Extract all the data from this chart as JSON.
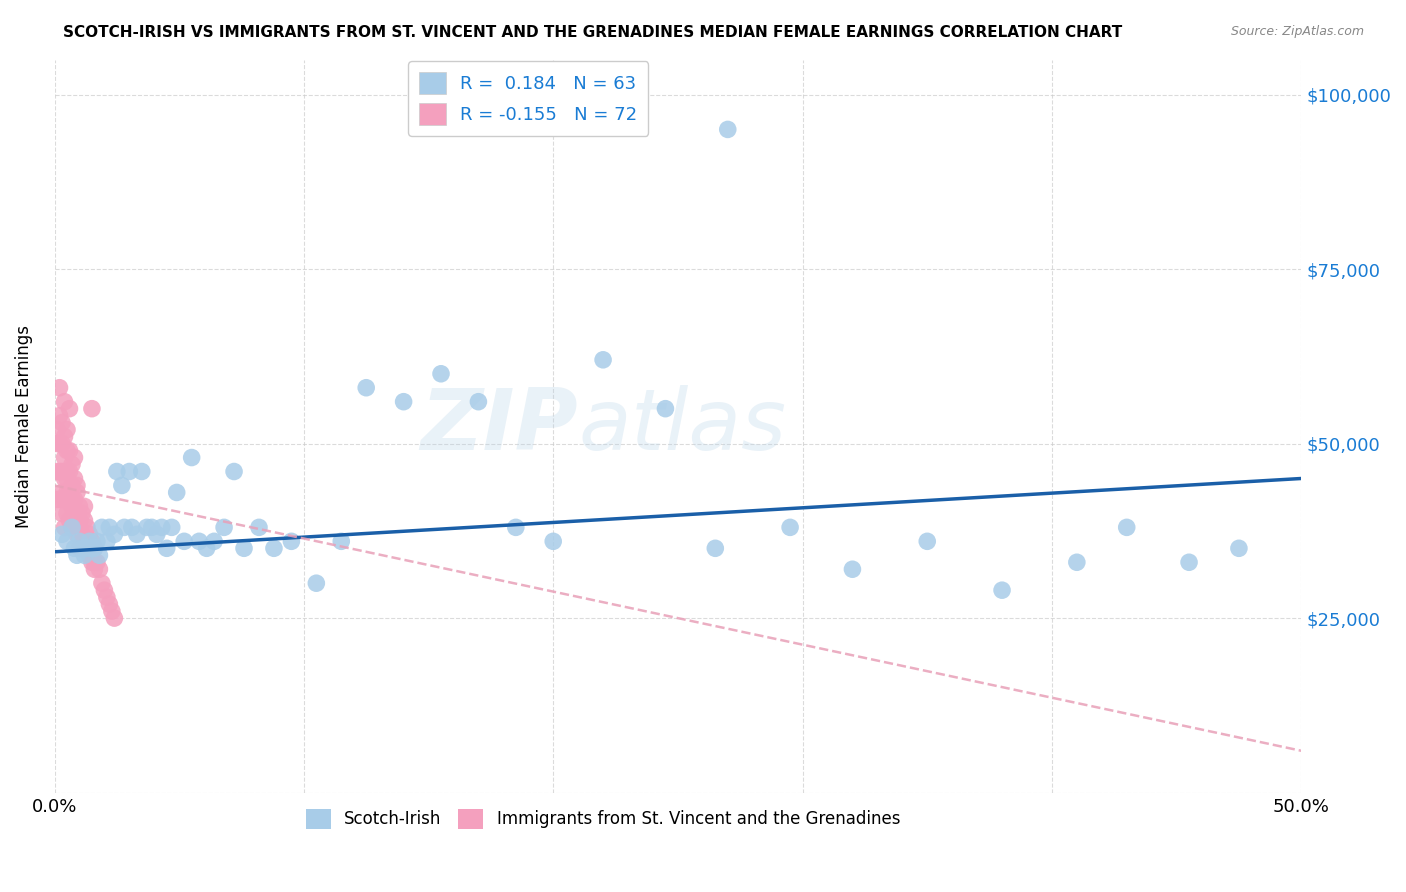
{
  "title": "SCOTCH-IRISH VS IMMIGRANTS FROM ST. VINCENT AND THE GRENADINES MEDIAN FEMALE EARNINGS CORRELATION CHART",
  "source": "Source: ZipAtlas.com",
  "ylabel": "Median Female Earnings",
  "xlim": [
    0.0,
    0.5
  ],
  "ylim": [
    0,
    105000
  ],
  "yticks": [
    0,
    25000,
    50000,
    75000,
    100000
  ],
  "ytick_labels": [
    "",
    "$25,000",
    "$50,000",
    "$75,000",
    "$100,000"
  ],
  "xticks": [
    0.0,
    0.1,
    0.2,
    0.3,
    0.4,
    0.5
  ],
  "scotch_irish_color": "#a8cce8",
  "pink_color": "#f4a0be",
  "scotch_irish_line_color": "#1a5fa8",
  "pink_line_color": "#e8a0b8",
  "blue_text_color": "#1a7cd4",
  "R_scotch": 0.184,
  "N_scotch": 63,
  "R_pink": -0.155,
  "N_pink": 72,
  "legend_label_scotch": "Scotch-Irish",
  "legend_label_pink": "Immigrants from St. Vincent and the Grenadines",
  "background_color": "#ffffff",
  "grid_color": "#cccccc",
  "scotch_irish_x": [
    0.003,
    0.005,
    0.007,
    0.008,
    0.009,
    0.01,
    0.011,
    0.012,
    0.013,
    0.014,
    0.015,
    0.016,
    0.017,
    0.018,
    0.019,
    0.021,
    0.022,
    0.024,
    0.025,
    0.027,
    0.028,
    0.03,
    0.031,
    0.033,
    0.035,
    0.037,
    0.039,
    0.041,
    0.043,
    0.045,
    0.047,
    0.049,
    0.052,
    0.055,
    0.058,
    0.061,
    0.064,
    0.068,
    0.072,
    0.076,
    0.082,
    0.088,
    0.095,
    0.105,
    0.115,
    0.125,
    0.14,
    0.155,
    0.17,
    0.185,
    0.2,
    0.22,
    0.245,
    0.265,
    0.27,
    0.295,
    0.32,
    0.35,
    0.38,
    0.41,
    0.43,
    0.455,
    0.475
  ],
  "scotch_irish_y": [
    37000,
    36000,
    38000,
    35000,
    34000,
    36000,
    35000,
    34000,
    35000,
    36000,
    35000,
    35000,
    36000,
    34000,
    38000,
    36000,
    38000,
    37000,
    46000,
    44000,
    38000,
    46000,
    38000,
    37000,
    46000,
    38000,
    38000,
    37000,
    38000,
    35000,
    38000,
    43000,
    36000,
    48000,
    36000,
    35000,
    36000,
    38000,
    46000,
    35000,
    38000,
    35000,
    36000,
    30000,
    36000,
    58000,
    56000,
    60000,
    56000,
    38000,
    36000,
    62000,
    55000,
    35000,
    95000,
    38000,
    32000,
    36000,
    29000,
    33000,
    38000,
    33000,
    35000
  ],
  "pink_x": [
    0.001,
    0.001,
    0.001,
    0.001,
    0.002,
    0.002,
    0.002,
    0.002,
    0.003,
    0.003,
    0.003,
    0.003,
    0.004,
    0.004,
    0.004,
    0.004,
    0.004,
    0.005,
    0.005,
    0.005,
    0.005,
    0.005,
    0.006,
    0.006,
    0.006,
    0.006,
    0.007,
    0.007,
    0.007,
    0.007,
    0.008,
    0.008,
    0.008,
    0.009,
    0.009,
    0.009,
    0.01,
    0.01,
    0.01,
    0.011,
    0.011,
    0.012,
    0.012,
    0.013,
    0.013,
    0.014,
    0.014,
    0.015,
    0.015,
    0.016,
    0.016,
    0.017,
    0.018,
    0.019,
    0.02,
    0.021,
    0.022,
    0.023,
    0.024,
    0.015,
    0.008,
    0.006,
    0.004,
    0.003,
    0.002,
    0.005,
    0.007,
    0.01,
    0.013,
    0.016,
    0.009,
    0.012
  ],
  "pink_y": [
    52000,
    50000,
    46000,
    42000,
    54000,
    50000,
    46000,
    42000,
    50000,
    46000,
    43000,
    40000,
    51000,
    48000,
    45000,
    42000,
    38000,
    52000,
    49000,
    46000,
    43000,
    40000,
    49000,
    46000,
    43000,
    39000,
    47000,
    44000,
    41000,
    38000,
    45000,
    42000,
    38000,
    43000,
    40000,
    37000,
    41000,
    38000,
    35000,
    40000,
    37000,
    39000,
    36000,
    38000,
    35000,
    37000,
    34000,
    36000,
    33000,
    35000,
    32000,
    33000,
    32000,
    30000,
    29000,
    28000,
    27000,
    26000,
    25000,
    55000,
    48000,
    55000,
    56000,
    53000,
    58000,
    45000,
    42000,
    39000,
    36000,
    33000,
    44000,
    41000
  ],
  "trend_scotch_x0": 0.0,
  "trend_scotch_y0": 34500,
  "trend_scotch_x1": 0.5,
  "trend_scotch_y1": 45000,
  "trend_pink_x0": 0.0,
  "trend_pink_y0": 44000,
  "trend_pink_x1": 0.5,
  "trend_pink_y1": 6000
}
